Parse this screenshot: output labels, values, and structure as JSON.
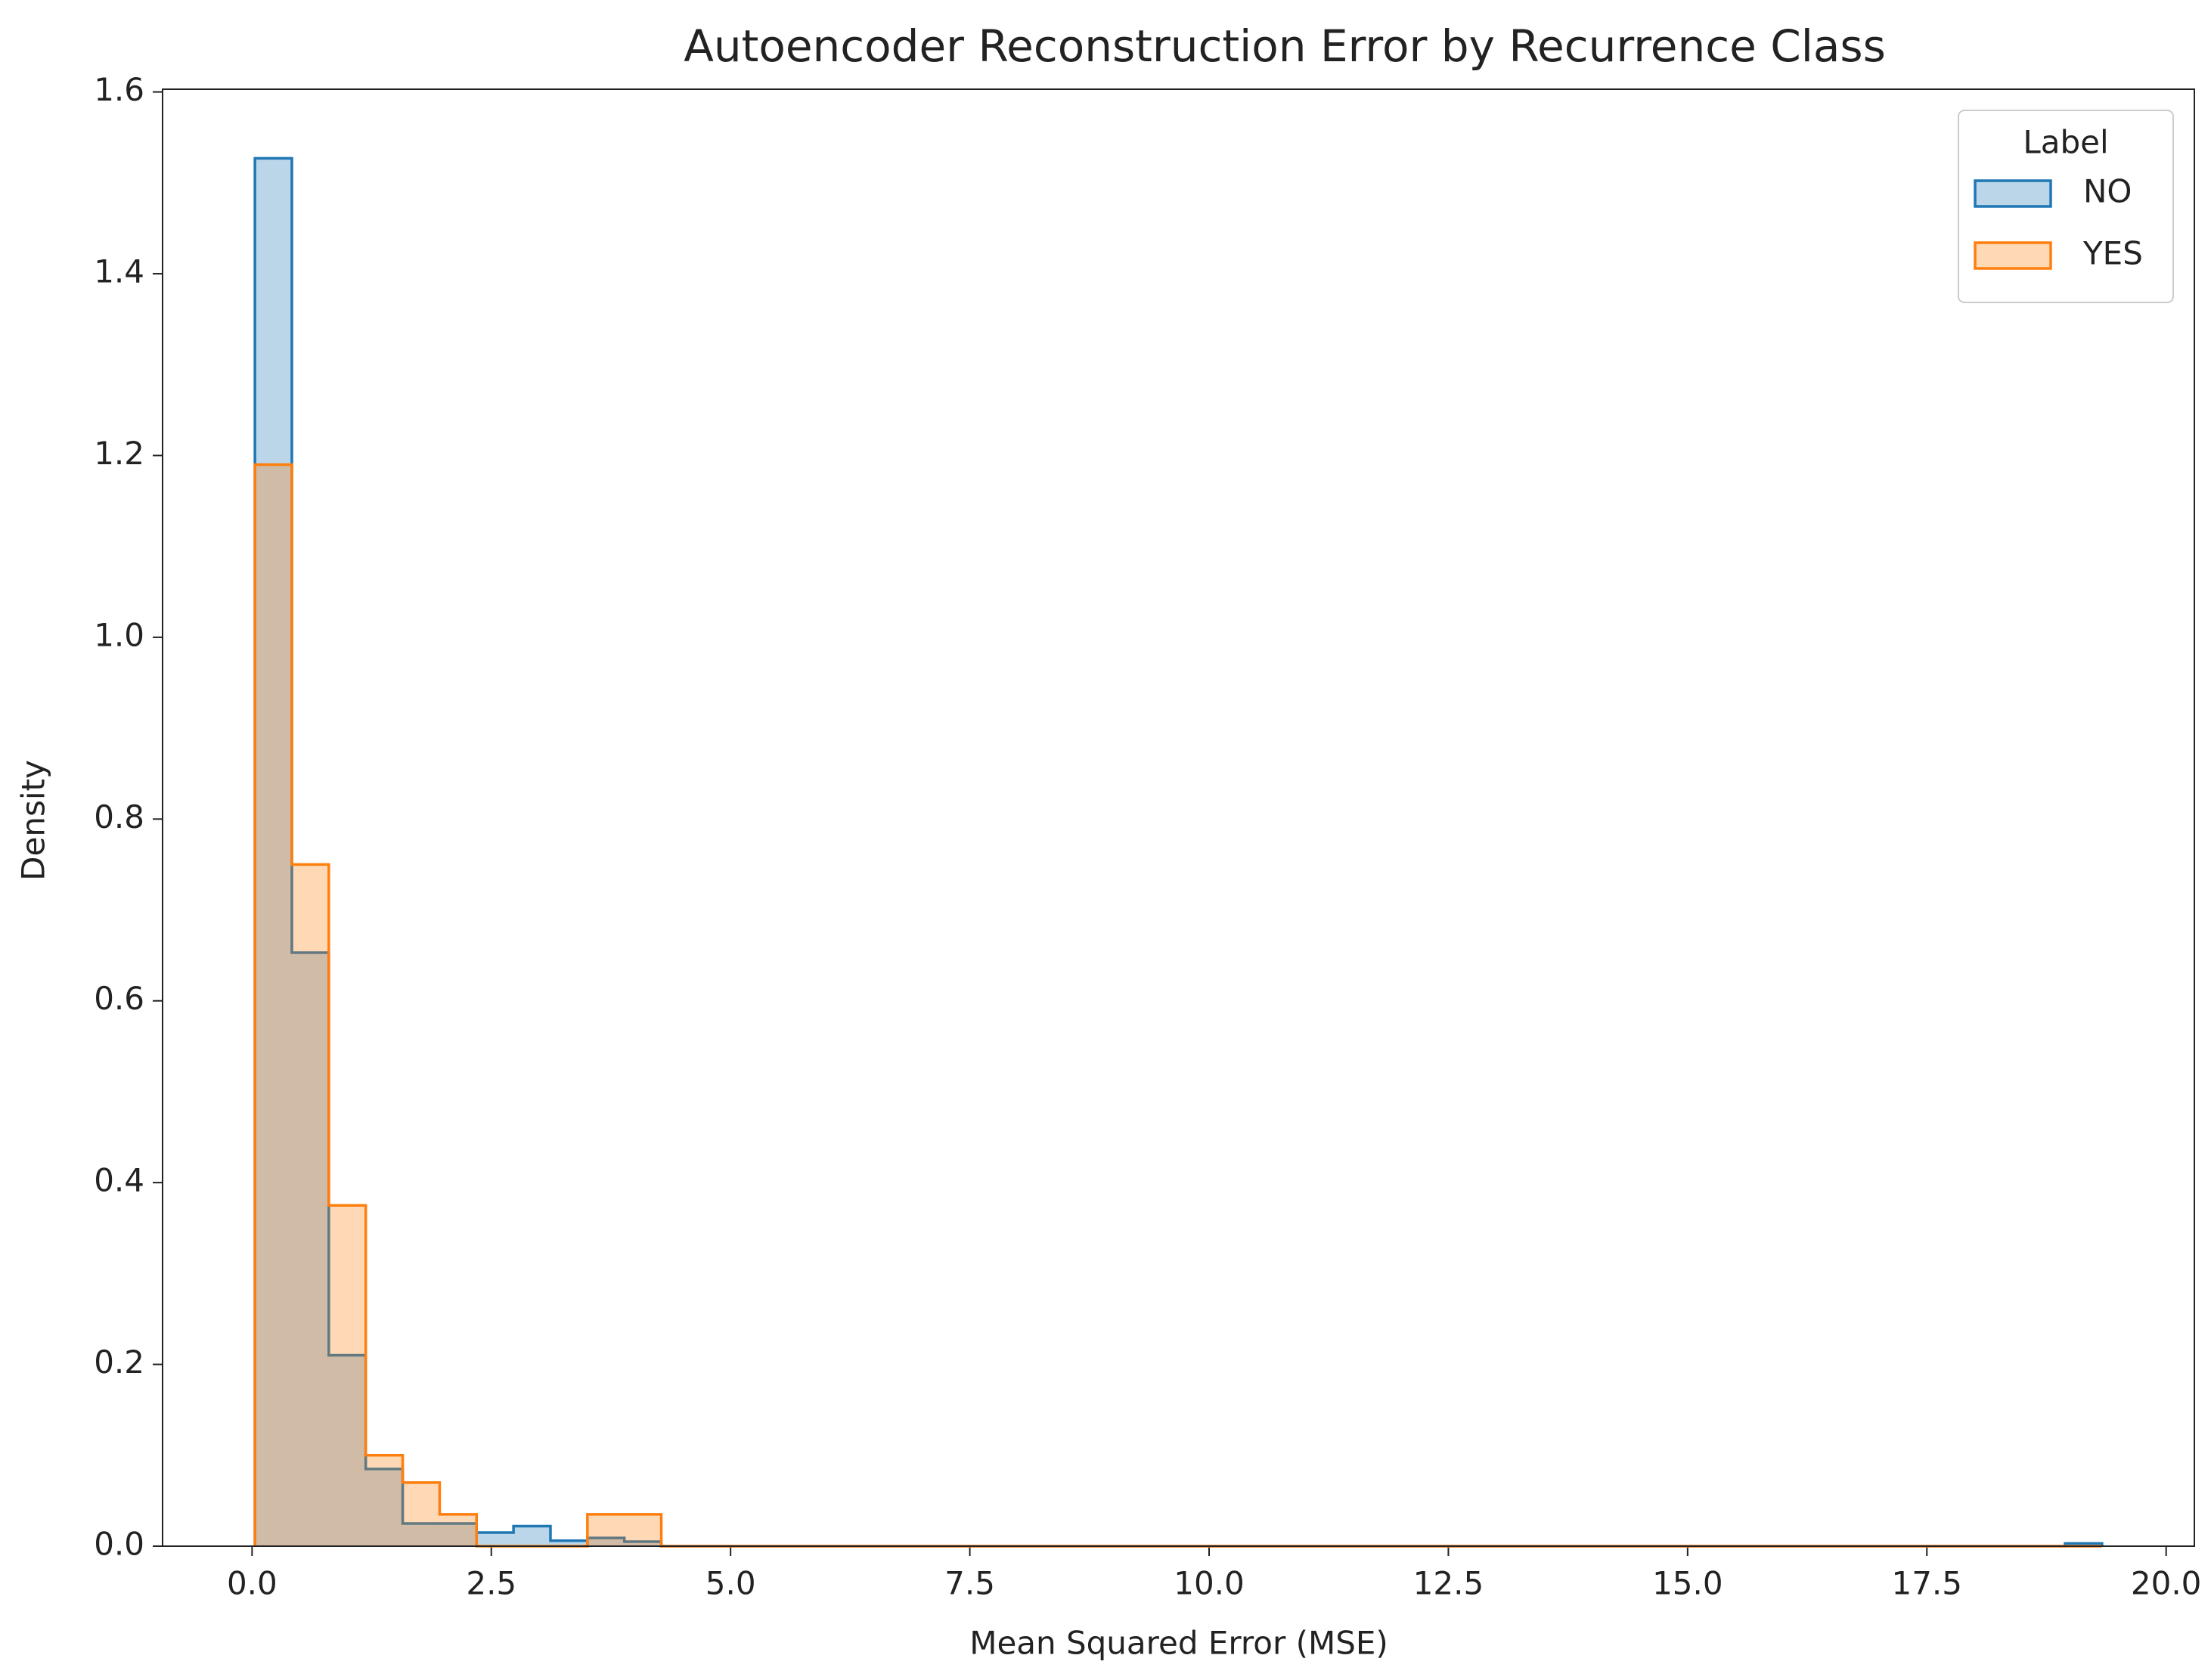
{
  "chart_data": {
    "type": "histogram",
    "title": "Autoencoder Reconstruction Error by Recurrence Class",
    "x_label": "Mean Squared Error (MSE)",
    "y_label": "Density",
    "legend_title": "Label",
    "legend_position": "upper right",
    "bins": [
      0.03,
      0.416,
      0.802,
      1.188,
      1.574,
      1.96,
      2.346,
      2.732,
      3.118,
      3.504,
      3.89,
      4.276,
      4.662,
      5.048,
      5.434,
      5.82,
      6.206,
      6.592,
      6.978,
      7.364,
      7.75,
      8.136,
      8.522,
      8.908,
      9.294,
      9.68,
      10.066,
      10.452,
      10.838,
      11.224,
      11.61,
      11.996,
      12.382,
      12.768,
      13.154,
      13.54,
      13.926,
      14.312,
      14.698,
      15.084,
      15.47,
      15.856,
      16.242,
      16.628,
      17.014,
      17.4,
      17.786,
      18.172,
      18.558,
      18.944,
      19.33
    ],
    "series": [
      {
        "name": "NO",
        "color": "#1f77b4",
        "values": [
          1.527,
          0.653,
          0.21,
          0.085,
          0.025,
          0.025,
          0.015,
          0.022,
          0.006,
          0.009,
          0.005,
          0,
          0,
          0,
          0,
          0,
          0,
          0,
          0,
          0,
          0,
          0,
          0,
          0,
          0,
          0,
          0,
          0,
          0,
          0,
          0,
          0,
          0,
          0,
          0,
          0,
          0,
          0,
          0,
          0,
          0,
          0,
          0,
          0,
          0,
          0,
          0,
          0,
          0,
          0.003
        ]
      },
      {
        "name": "YES",
        "color": "#ff7f0e",
        "values": [
          1.19,
          0.75,
          0.375,
          0.1,
          0.07,
          0.035,
          0,
          0,
          0,
          0.035,
          0.035,
          0,
          0,
          0,
          0,
          0,
          0,
          0,
          0,
          0,
          0,
          0,
          0,
          0,
          0,
          0,
          0,
          0,
          0,
          0,
          0,
          0,
          0,
          0,
          0,
          0,
          0,
          0,
          0,
          0,
          0,
          0,
          0,
          0,
          0,
          0,
          0,
          0,
          0,
          0
        ]
      }
    ],
    "xlim": [
      -0.935,
      20.295
    ],
    "ylim": [
      0,
      1.603
    ],
    "xticks": [
      {
        "value": 0,
        "label": "0.0"
      },
      2.5,
      {
        "value": 5,
        "label": "5.0"
      },
      7.5,
      {
        "value": 10,
        "label": "10.0"
      },
      12.5,
      {
        "value": 15,
        "label": "15.0"
      },
      17.5,
      {
        "value": 20,
        "label": "20.0"
      }
    ],
    "yticks": [
      {
        "value": 0,
        "label": "0.0"
      },
      0.2,
      0.4,
      0.6,
      0.8,
      {
        "value": 1,
        "label": "1.0"
      },
      1.2,
      1.4,
      1.6
    ],
    "fill_opacity": 0.3
  }
}
